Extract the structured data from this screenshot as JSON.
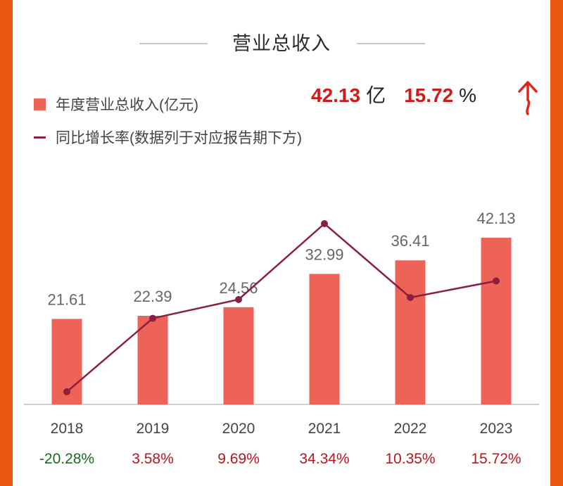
{
  "colors": {
    "frame": "#e8570f",
    "bar": "#ee6358",
    "line": "#8b1f3e",
    "positive": "#b4171e",
    "negative": "#1a6b1a",
    "kpi": "#d11a1a"
  },
  "title": "营业总收入",
  "legend": {
    "bar_label": "年度营业总收入(亿元)",
    "line_label": "同比增长率(数据列于对应报告期下方)"
  },
  "kpi": {
    "revenue": "42.13",
    "revenue_unit": "亿",
    "growth": "15.72",
    "growth_unit": "%",
    "trend_icon": "up-arrow-icon"
  },
  "chart_data": {
    "type": "bar",
    "categories": [
      "2018",
      "2019",
      "2020",
      "2021",
      "2022",
      "2023"
    ],
    "series": [
      {
        "name": "年度营业总收入(亿元)",
        "type": "bar",
        "values": [
          21.61,
          22.39,
          24.56,
          32.99,
          36.41,
          42.13
        ],
        "labels": [
          "21.61",
          "22.39",
          "24.56",
          "32.99",
          "36.41",
          "42.13"
        ]
      },
      {
        "name": "同比增长率(数据列于对应报告期下方)",
        "type": "line",
        "values": [
          -20.28,
          3.58,
          9.69,
          34.34,
          10.35,
          15.72
        ],
        "labels": [
          "-20.28%",
          "3.58%",
          "9.69%",
          "34.34%",
          "10.35%",
          "15.72%"
        ]
      }
    ],
    "bar_ylim": [
      0,
      46
    ],
    "line_ylim": [
      -30,
      40
    ],
    "grid": false,
    "legend_position": "top-left"
  }
}
